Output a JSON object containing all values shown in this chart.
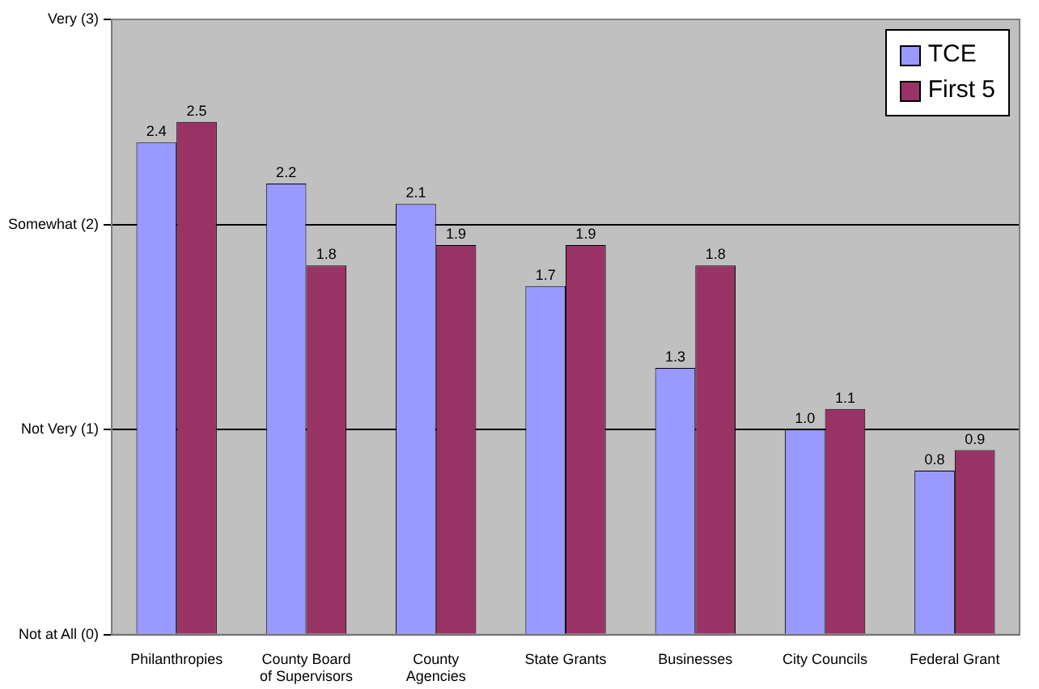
{
  "chart_data": {
    "type": "bar",
    "categories": [
      "Philanthropies",
      "County Board of Supervisors",
      "County Agencies",
      "State Grants",
      "Businesses",
      "City Councils",
      "Federal Grant"
    ],
    "series": [
      {
        "name": "TCE",
        "color": "#9999ff",
        "values": [
          2.4,
          2.2,
          2.1,
          1.7,
          1.3,
          1.0,
          0.8
        ],
        "value_labels": [
          "2.4",
          "2.2",
          "2.1",
          "1.7",
          "1.3",
          "1.0",
          "0.8"
        ]
      },
      {
        "name": "First 5",
        "color": "#993366",
        "values": [
          2.5,
          1.8,
          1.9,
          1.9,
          1.8,
          1.1,
          0.9
        ],
        "value_labels": [
          "2.5",
          "1.8",
          "1.9",
          "1.9",
          "1.8",
          "1.1",
          "0.9"
        ]
      }
    ],
    "ylim": [
      0,
      3
    ],
    "yticks": [
      {
        "value": 0,
        "label": "Not at All (0)"
      },
      {
        "value": 1,
        "label": "Not Very (1)"
      },
      {
        "value": 2,
        "label": "Somewhat (2)"
      },
      {
        "value": 3,
        "label": "Very (3)"
      }
    ],
    "grid": "y",
    "legend": "top right"
  }
}
